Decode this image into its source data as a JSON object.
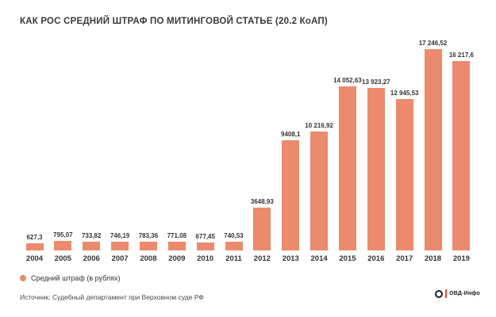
{
  "title": "КАК РОС СРЕДНИЙ ШТРАФ ПО МИТИНГОВОЙ СТАТЬЕ (20.2 КоАП)",
  "legend": {
    "label": "Средний штраф (в рублях)"
  },
  "source": "Источник: Судебный департамент при Верховном суде РФ",
  "logo": {
    "text": "ОВД-Инфо"
  },
  "colors": {
    "bar": "#ec8a6e",
    "title_text": "#3a3a3a",
    "logo_accent": "#e8472e",
    "background": "#ffffff"
  },
  "chart_data": {
    "type": "bar",
    "title": "КАК РОС СРЕДНИЙ ШТРАФ ПО МИТИНГОВОЙ СТАТЬЕ (20.2 КоАП)",
    "series_name": "Средний штраф (в рублях)",
    "categories": [
      "2004",
      "2005",
      "2006",
      "2007",
      "2008",
      "2009",
      "2010",
      "2011",
      "2012",
      "2013",
      "2014",
      "2015",
      "2016",
      "2017",
      "2018",
      "2019"
    ],
    "values": [
      627.3,
      795.07,
      733.82,
      746.19,
      783.36,
      771.08,
      677.45,
      740.53,
      3648.93,
      9408.1,
      10216.92,
      14052.63,
      13923.27,
      12945.53,
      17246.52,
      16217.6
    ],
    "value_labels": [
      "627,3",
      "795,07",
      "733,82",
      "746,19",
      "783,36",
      "771,08",
      "677,45",
      "740,53",
      "3648,93",
      "9408,1",
      "10 216,92",
      "14 052,63",
      "13 923,27",
      "12 945,53",
      "17 246,52",
      "16 217,6"
    ],
    "xlabel": "",
    "ylabel": "Средний штраф (в рублях)",
    "ylim": [
      0,
      18000
    ],
    "grid": false,
    "axes_visible": false,
    "data_labels": "above bars",
    "legend_position": "bottom-left"
  }
}
